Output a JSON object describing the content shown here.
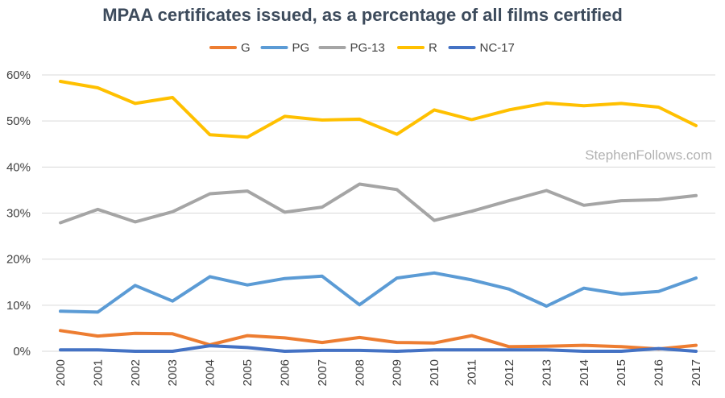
{
  "chart_data": {
    "type": "line",
    "title": "MPAA certificates issued, as a percentage of all films certified",
    "xlabel": "",
    "ylabel": "",
    "x": [
      "2000",
      "2001",
      "2002",
      "2003",
      "2004",
      "2005",
      "2006",
      "2007",
      "2008",
      "2009",
      "2010",
      "2011",
      "2012",
      "2013",
      "2014",
      "2015",
      "2016",
      "2017"
    ],
    "ylim": [
      0,
      60
    ],
    "yticks": [
      0,
      10,
      20,
      30,
      40,
      50,
      60
    ],
    "ytick_labels": [
      "0%",
      "10%",
      "20%",
      "30%",
      "40%",
      "50%",
      "60%"
    ],
    "grid": true,
    "legend_position": "top",
    "watermark": "StephenFollows.com",
    "series": [
      {
        "name": "G",
        "color": "#ed7d31",
        "values": [
          4.5,
          3.3,
          3.9,
          3.8,
          1.4,
          3.4,
          2.9,
          1.9,
          3.0,
          1.9,
          1.8,
          3.4,
          1.0,
          1.1,
          1.3,
          1.0,
          0.5,
          1.3
        ]
      },
      {
        "name": "PG",
        "color": "#5b9bd5",
        "values": [
          8.7,
          8.5,
          14.3,
          10.9,
          16.2,
          14.4,
          15.8,
          16.3,
          10.1,
          15.9,
          17.0,
          15.5,
          13.5,
          9.8,
          13.7,
          12.4,
          13.0,
          15.9
        ]
      },
      {
        "name": "PG-13",
        "color": "#a5a5a5",
        "values": [
          27.9,
          30.8,
          28.1,
          30.3,
          34.2,
          34.8,
          30.2,
          31.3,
          36.3,
          35.1,
          28.4,
          30.4,
          32.7,
          34.9,
          31.7,
          32.7,
          32.9,
          33.8
        ]
      },
      {
        "name": "R",
        "color": "#ffc000",
        "values": [
          58.6,
          57.2,
          53.8,
          55.1,
          47.0,
          46.5,
          51.0,
          50.2,
          50.4,
          47.1,
          52.4,
          50.3,
          52.4,
          53.9,
          53.3,
          53.8,
          53.0,
          49.0
        ]
      },
      {
        "name": "NC-17",
        "color": "#4472c4",
        "values": [
          0.3,
          0.3,
          0.0,
          0.0,
          1.2,
          0.8,
          0.0,
          0.2,
          0.2,
          0.0,
          0.3,
          0.3,
          0.3,
          0.3,
          0.0,
          0.0,
          0.6,
          0.0
        ]
      }
    ]
  }
}
